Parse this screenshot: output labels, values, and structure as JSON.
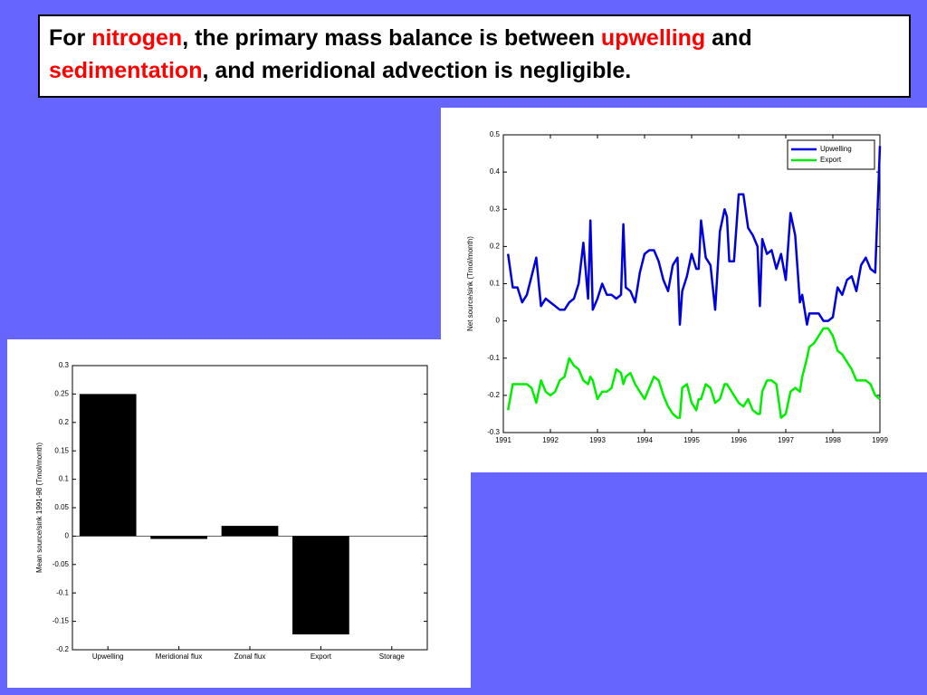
{
  "header": {
    "lines": [
      [
        {
          "text": "For ",
          "color": "#000000"
        },
        {
          "text": "nitrogen",
          "color": "#ff0000"
        },
        {
          "text": ", the primary mass balance is between ",
          "color": "#000000"
        },
        {
          "text": "upwelling",
          "color": "#ff0000"
        },
        {
          "text": " and",
          "color": "#000000"
        }
      ],
      [
        {
          "text": "sedimentation",
          "color": "#ff0000"
        },
        {
          "text": ", and meridional advection is negligible.",
          "color": "#000000"
        }
      ]
    ]
  },
  "chart_data": [
    {
      "type": "line",
      "ylabel": "Net source/sink (Tmol/month)",
      "legend": "upper right",
      "xlim": [
        1991,
        1999
      ],
      "xticks": [
        1991,
        1992,
        1993,
        1994,
        1995,
        1996,
        1997,
        1998,
        1999
      ],
      "ylim": [
        -0.3,
        0.5
      ],
      "yticks": [
        -0.3,
        -0.2,
        -0.1,
        0,
        0.1,
        0.2,
        0.3,
        0.4,
        0.5
      ],
      "x": [
        1991.1,
        1991.2,
        1991.3,
        1991.4,
        1991.5,
        1991.6,
        1991.7,
        1991.8,
        1991.9,
        1992.0,
        1992.1,
        1992.2,
        1992.3,
        1992.4,
        1992.5,
        1992.6,
        1992.7,
        1992.8,
        1992.85,
        1992.9,
        1993.0,
        1993.1,
        1993.2,
        1993.3,
        1993.4,
        1993.5,
        1993.55,
        1993.6,
        1993.7,
        1993.8,
        1993.9,
        1994.0,
        1994.1,
        1994.2,
        1994.3,
        1994.4,
        1994.5,
        1994.6,
        1994.7,
        1994.75,
        1994.8,
        1994.9,
        1995.0,
        1995.1,
        1995.15,
        1995.2,
        1995.3,
        1995.4,
        1995.5,
        1995.6,
        1995.7,
        1995.75,
        1995.8,
        1995.9,
        1996.0,
        1996.1,
        1996.2,
        1996.3,
        1996.4,
        1996.45,
        1996.5,
        1996.6,
        1996.7,
        1996.8,
        1996.9,
        1997.0,
        1997.1,
        1997.2,
        1997.3,
        1997.35,
        1997.45,
        1997.5,
        1997.6,
        1997.7,
        1997.8,
        1997.9,
        1998.0,
        1998.1,
        1998.2,
        1998.3,
        1998.4,
        1998.5,
        1998.6,
        1998.7,
        1998.8,
        1998.9,
        1999.0
      ],
      "series": [
        {
          "name": "Upwelling",
          "color": "#0000dd",
          "values": [
            0.18,
            0.09,
            0.09,
            0.05,
            0.07,
            0.12,
            0.17,
            0.04,
            0.06,
            0.05,
            0.04,
            0.03,
            0.03,
            0.05,
            0.06,
            0.1,
            0.21,
            0.06,
            0.27,
            0.03,
            0.06,
            0.1,
            0.07,
            0.07,
            0.06,
            0.07,
            0.26,
            0.09,
            0.08,
            0.05,
            0.13,
            0.18,
            0.19,
            0.19,
            0.16,
            0.11,
            0.08,
            0.15,
            0.17,
            -0.01,
            0.08,
            0.12,
            0.18,
            0.14,
            0.14,
            0.27,
            0.17,
            0.15,
            0.03,
            0.24,
            0.3,
            0.28,
            0.16,
            0.16,
            0.34,
            0.34,
            0.25,
            0.23,
            0.2,
            0.04,
            0.22,
            0.18,
            0.19,
            0.14,
            0.18,
            0.11,
            0.29,
            0.23,
            0.05,
            0.07,
            -0.01,
            0.02,
            0.02,
            0.02,
            0.0,
            0.0,
            0.01,
            0.09,
            0.07,
            0.11,
            0.12,
            0.08,
            0.15,
            0.17,
            0.14,
            0.13,
            0.47
          ]
        },
        {
          "name": "Export",
          "color": "#00ee00",
          "values": [
            -0.24,
            -0.17,
            -0.17,
            -0.17,
            -0.17,
            -0.18,
            -0.22,
            -0.16,
            -0.19,
            -0.2,
            -0.19,
            -0.16,
            -0.15,
            -0.1,
            -0.12,
            -0.13,
            -0.16,
            -0.17,
            -0.15,
            -0.16,
            -0.21,
            -0.19,
            -0.19,
            -0.18,
            -0.13,
            -0.14,
            -0.17,
            -0.15,
            -0.14,
            -0.17,
            -0.19,
            -0.21,
            -0.18,
            -0.15,
            -0.16,
            -0.2,
            -0.23,
            -0.25,
            -0.26,
            -0.26,
            -0.18,
            -0.17,
            -0.22,
            -0.24,
            -0.21,
            -0.21,
            -0.17,
            -0.18,
            -0.22,
            -0.21,
            -0.17,
            -0.17,
            -0.18,
            -0.2,
            -0.22,
            -0.23,
            -0.21,
            -0.24,
            -0.25,
            -0.25,
            -0.19,
            -0.16,
            -0.16,
            -0.17,
            -0.26,
            -0.25,
            -0.19,
            -0.18,
            -0.19,
            -0.15,
            -0.1,
            -0.07,
            -0.06,
            -0.04,
            -0.02,
            -0.02,
            -0.04,
            -0.08,
            -0.09,
            -0.11,
            -0.13,
            -0.16,
            -0.16,
            -0.16,
            -0.17,
            -0.2,
            -0.21
          ]
        }
      ]
    },
    {
      "type": "bar",
      "ylabel": "Mean source/sink 1991-98 (Tmol/month)",
      "color": "#000000",
      "categories": [
        "Upwelling",
        "Meridional flux",
        "Zonal flux",
        "Export",
        "Storage"
      ],
      "values": [
        0.25,
        -0.005,
        0.018,
        -0.173,
        0
      ],
      "ylim": [
        -0.2,
        0.3
      ],
      "yticks": [
        -0.2,
        -0.15,
        -0.1,
        -0.05,
        0,
        0.05,
        0.1,
        0.15,
        0.2,
        0.25,
        0.3
      ]
    }
  ]
}
